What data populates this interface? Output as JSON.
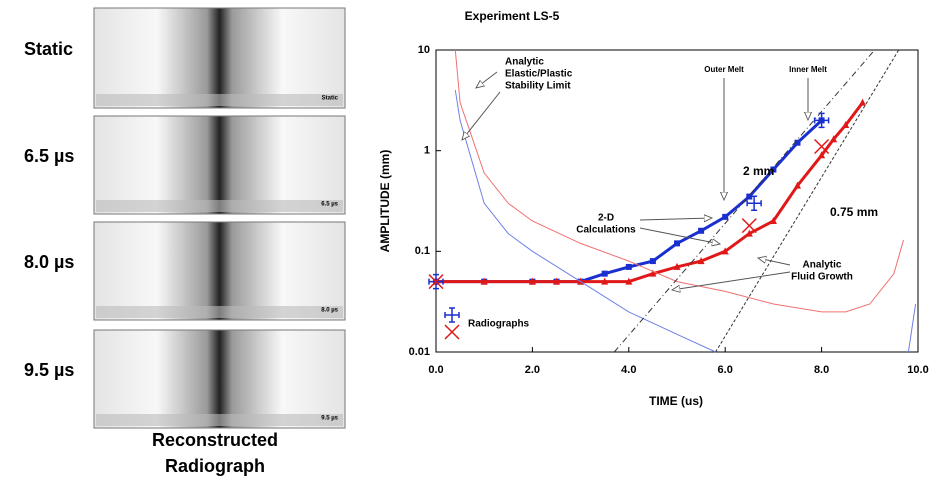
{
  "panels": {
    "labels": [
      "Static",
      "6.5 µs",
      "8.0 µs",
      "9.5 µs"
    ],
    "image_labels": [
      "Static",
      "6.5 µs",
      "8.0 µs",
      "9.5 µs"
    ],
    "caption": [
      "Reconstructed",
      "Radiograph"
    ]
  },
  "chart_data": {
    "type": "line",
    "title": "Experiment LS-5",
    "x_label": "TIME (us)",
    "y_label": "AMPLITUDE (mm)",
    "xlim": [
      0,
      10
    ],
    "ylim": [
      0.01,
      10
    ],
    "log_y": true,
    "xticks": [
      {
        "value": 0,
        "label": "0.0"
      },
      {
        "value": 2,
        "label": "2.0"
      },
      {
        "value": 4,
        "label": "4.0"
      },
      {
        "value": 6,
        "label": "6.0"
      },
      {
        "value": 8,
        "label": "8.0"
      },
      {
        "value": 10,
        "label": "10.0"
      }
    ],
    "yticks": [
      0.01,
      0.1,
      1,
      10
    ],
    "series": [
      {
        "name": "2 mm",
        "color": "#1a2fd0",
        "marker": "square",
        "width": 3,
        "x": [
          0,
          1,
          2,
          2.5,
          3,
          3.5,
          4,
          4.5,
          5,
          5.5,
          6,
          6.5,
          7,
          7.5,
          8
        ],
        "values": [
          0.05,
          0.05,
          0.05,
          0.05,
          0.05,
          0.06,
          0.07,
          0.08,
          0.12,
          0.16,
          0.22,
          0.35,
          0.65,
          1.2,
          2.0
        ]
      },
      {
        "name": "0.75 mm",
        "color": "#e01818",
        "marker": "triangle",
        "width": 3,
        "x": [
          0,
          1,
          2,
          2.5,
          3,
          3.5,
          4,
          4.5,
          5,
          5.5,
          6,
          6.5,
          7,
          7.5,
          8,
          8.25,
          8.5,
          8.85
        ],
        "values": [
          0.05,
          0.05,
          0.05,
          0.05,
          0.05,
          0.05,
          0.05,
          0.06,
          0.07,
          0.08,
          0.1,
          0.15,
          0.2,
          0.45,
          0.9,
          1.3,
          1.8,
          3.0
        ]
      },
      {
        "color": "#f07070",
        "width": 1,
        "x": [
          0.4,
          0.5,
          1,
          1.5,
          2,
          3,
          4,
          5,
          6,
          7,
          8,
          8.5,
          9,
          9.5,
          9.7
        ],
        "values": [
          10,
          3,
          0.6,
          0.3,
          0.2,
          0.12,
          0.08,
          0.05,
          0.04,
          0.03,
          0.025,
          0.025,
          0.03,
          0.06,
          0.13
        ]
      },
      {
        "color": "#7080e8",
        "width": 1,
        "x": [
          0.4,
          0.5,
          1,
          1.5,
          2,
          3,
          4,
          5,
          5.8,
          7,
          9.8,
          9.95
        ],
        "values": [
          4,
          2,
          0.3,
          0.15,
          0.1,
          0.05,
          0.025,
          0.015,
          0.01,
          null,
          0.01,
          0.03
        ]
      },
      {
        "color": "#333333",
        "width": 1,
        "dash": "6 3 1 3",
        "x": [
          3.7,
          9.1
        ],
        "values": [
          0.01,
          10
        ]
      },
      {
        "color": "#333333",
        "width": 1,
        "dash": "3 2",
        "x": [
          5.8,
          9.6
        ],
        "values": [
          0.01,
          10
        ]
      }
    ],
    "marker_series": [
      {
        "color": "#1a2fd0",
        "marker": "plus",
        "x": [
          0,
          6.6,
          8.0
        ],
        "values": [
          0.05,
          0.3,
          2.0
        ]
      },
      {
        "color": "#e01818",
        "marker": "x",
        "x": [
          0,
          6.5,
          8.0
        ],
        "values": [
          0.05,
          0.18,
          1.1
        ]
      }
    ],
    "marker_legend": "Radiographs",
    "annotations": [
      {
        "lines": [
          "Analytic",
          "Elastic/Plastic",
          "Stability Limit"
        ]
      },
      {
        "lines": [
          "Outer Melt"
        ]
      },
      {
        "lines": [
          "Inner Melt"
        ]
      },
      {
        "lines": [
          "2-D",
          "Calculations"
        ]
      },
      {
        "lines": [
          "Analytic",
          "Fluid Growth"
        ]
      }
    ]
  }
}
